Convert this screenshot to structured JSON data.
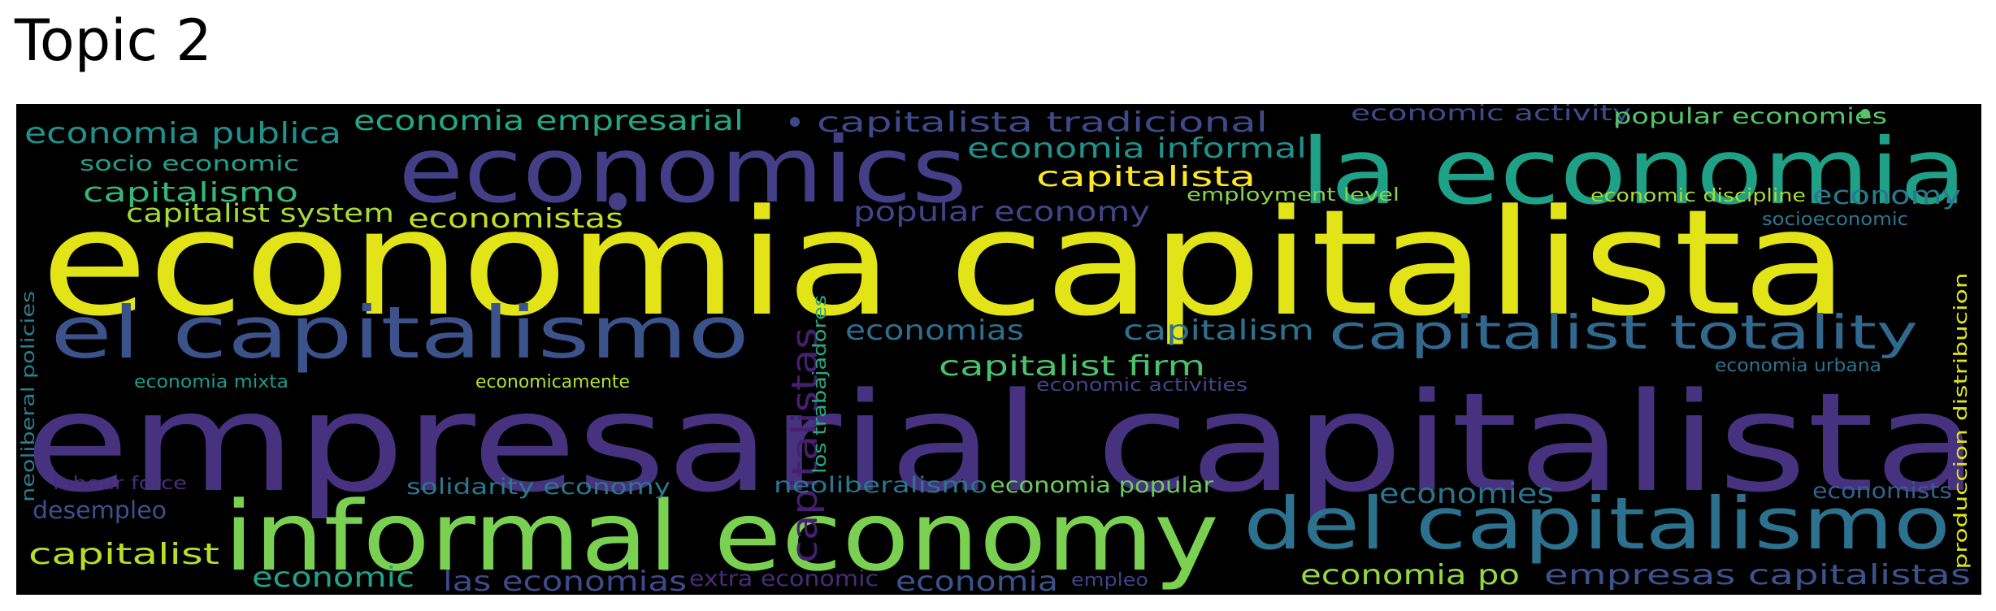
{
  "title": "Topic 2",
  "colors": {
    "background": "#000000",
    "title": "#000000"
  },
  "chart_data": {
    "type": "wordcloud",
    "title": "Topic 2",
    "words": [
      {
        "text": "economia capitalista",
        "color": "#e2e418"
      },
      {
        "text": "empresarial capitalista",
        "color": "#46327e"
      },
      {
        "text": "economics",
        "color": "#433e85"
      },
      {
        "text": "la economia",
        "color": "#1fa188"
      },
      {
        "text": "informal economy",
        "color": "#7ad151"
      },
      {
        "text": "el capitalismo",
        "color": "#3b528b"
      },
      {
        "text": "del capitalismo",
        "color": "#2c728e"
      },
      {
        "text": "capitalist totality",
        "color": "#31688e"
      },
      {
        "text": "capitalistas",
        "color": "#481f70"
      },
      {
        "text": "economia publica",
        "color": "#21918c"
      },
      {
        "text": "economia empresarial",
        "color": "#22a884"
      },
      {
        "text": "capitalista tradicional",
        "color": "#3e4989"
      },
      {
        "text": "economia informal",
        "color": "#21918c"
      },
      {
        "text": "capitalista",
        "color": "#fde725"
      },
      {
        "text": "economic activity",
        "color": "#3e4a89"
      },
      {
        "text": "popular economies",
        "color": "#54c568"
      },
      {
        "text": "socio economic",
        "color": "#1f9e89"
      },
      {
        "text": "capitalismo",
        "color": "#35b779"
      },
      {
        "text": "capitalist system",
        "color": "#a5db36"
      },
      {
        "text": "economistas",
        "color": "#c2df23"
      },
      {
        "text": "popular economy",
        "color": "#414487"
      },
      {
        "text": "employment level",
        "color": "#86d549"
      },
      {
        "text": "economic discipline",
        "color": "#aadc32"
      },
      {
        "text": "economy",
        "color": "#2a788e"
      },
      {
        "text": "socioeconomic",
        "color": "#2a788e"
      },
      {
        "text": "neoliberal policies",
        "color": "#277f8e"
      },
      {
        "text": "los trabajadores",
        "color": "#25ab82"
      },
      {
        "text": "produccion distribucion",
        "color": "#dde318"
      },
      {
        "text": "economias",
        "color": "#2e6e8e"
      },
      {
        "text": "capitalism",
        "color": "#2c728e"
      },
      {
        "text": "capitalist firm",
        "color": "#4ac16d"
      },
      {
        "text": "economia mixta",
        "color": "#1f988b"
      },
      {
        "text": "economicamente",
        "color": "#b5de2b"
      },
      {
        "text": "economic activities",
        "color": "#414487"
      },
      {
        "text": "economia urbana",
        "color": "#2c728e"
      },
      {
        "text": "labour force",
        "color": "#472d7b"
      },
      {
        "text": "solidarity economy",
        "color": "#2a788e"
      },
      {
        "text": "neoliberalismo",
        "color": "#2a768e"
      },
      {
        "text": "economia popular",
        "color": "#6ccd5a"
      },
      {
        "text": "economies",
        "color": "#2c728e"
      },
      {
        "text": "economists",
        "color": "#34608d"
      },
      {
        "text": "desempleo",
        "color": "#3b528b"
      },
      {
        "text": "capitalist",
        "color": "#b8de29"
      },
      {
        "text": "economic",
        "color": "#20a386"
      },
      {
        "text": "las economias",
        "color": "#3e4a89"
      },
      {
        "text": "extra economic",
        "color": "#472c7a"
      },
      {
        "text": "economia",
        "color": "#3b528b"
      },
      {
        "text": "empleo",
        "color": "#424086"
      },
      {
        "text": "economia po",
        "color": "#93d741"
      },
      {
        "text": "empresas capitalistas",
        "color": "#3b528b"
      }
    ]
  }
}
